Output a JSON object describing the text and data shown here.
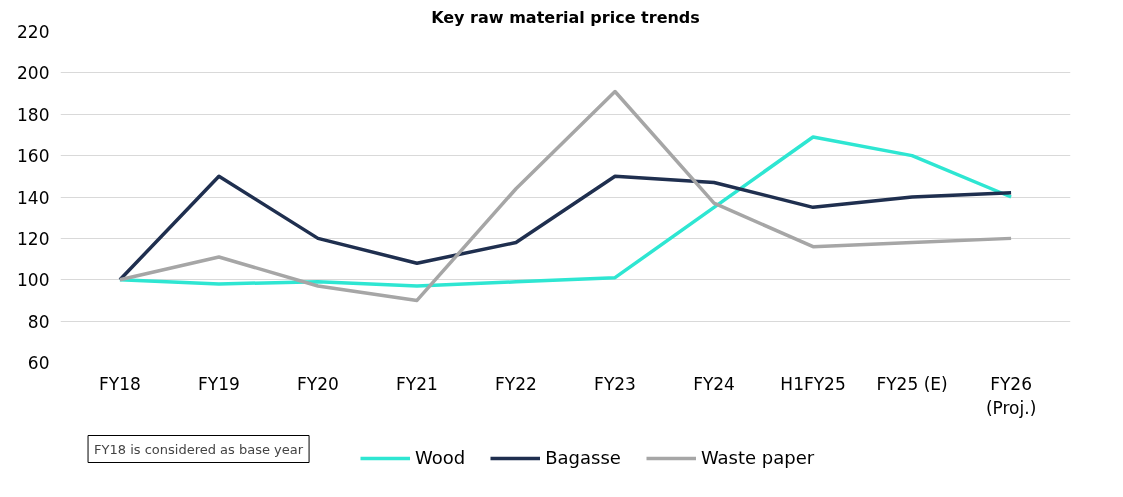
{
  "chart_data": {
    "type": "line",
    "title": "Key raw material price trends",
    "categories": [
      "FY18",
      "FY19",
      "FY20",
      "FY21",
      "FY22",
      "FY23",
      "FY24",
      "H1FY25",
      "FY25 (E)",
      "FY26\n(Proj.)"
    ],
    "series": [
      {
        "name": "Wood",
        "color": "#2ee6d2",
        "values": [
          100,
          98,
          99,
          97,
          99,
          101,
          135,
          169,
          160,
          140
        ]
      },
      {
        "name": "Bagasse",
        "color": "#1f2f4f",
        "values": [
          100,
          150,
          120,
          108,
          118,
          150,
          147,
          135,
          140,
          142
        ]
      },
      {
        "name": "Waste paper",
        "color": "#a6a6a6",
        "values": [
          100,
          111,
          97,
          90,
          144,
          191,
          137,
          116,
          118,
          120
        ]
      }
    ],
    "ylim": [
      60,
      220
    ],
    "yticks": [
      60,
      80,
      100,
      120,
      140,
      160,
      180,
      200,
      220
    ],
    "grid": "y",
    "legend": "bottom",
    "marker": "none",
    "line_style": "solid",
    "annotations": [
      "FY18 is considered as base year"
    ]
  }
}
